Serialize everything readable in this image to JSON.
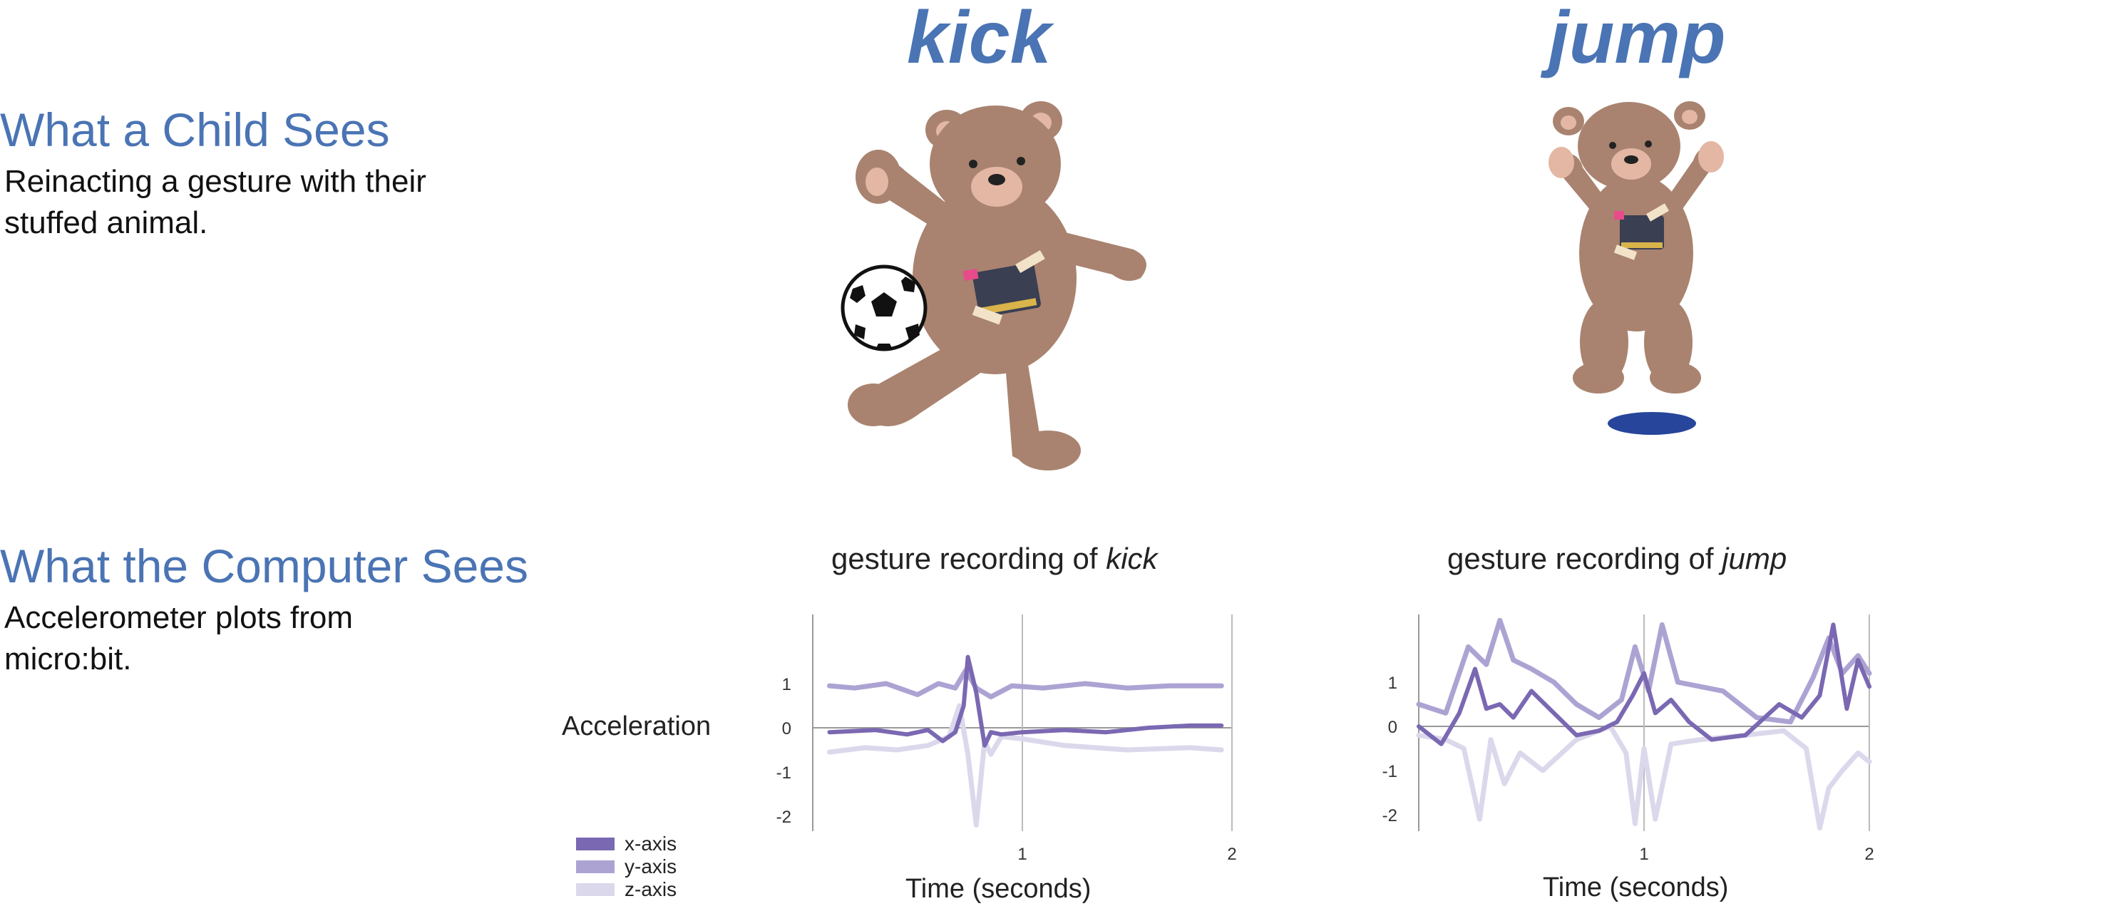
{
  "left": {
    "child": {
      "title": "What a Child Sees",
      "body": "Reinacting a gesture with their stuffed animal."
    },
    "computer": {
      "title": "What the Computer Sees",
      "body": "Accelerometer plots from micro:bit."
    }
  },
  "gestures": [
    {
      "word": "kick",
      "caption_prefix": "gesture recording of ",
      "caption_word": "kick"
    },
    {
      "word": "jump",
      "caption_prefix": "gesture recording of ",
      "caption_word": "jump"
    }
  ],
  "colors": {
    "heading": "#4a74b4",
    "bear": "#a98370",
    "bear_light": "#e3b7a3",
    "shadow": "#27459a",
    "x": "#7a68b2",
    "y": "#ada3d3",
    "z": "#dcd8ec"
  },
  "chart_data": [
    {
      "type": "line",
      "title": "gesture recording of kick",
      "ylabel": "Acceleration",
      "xlabel": "Time (seconds)",
      "yticks": [
        "1",
        "0",
        "-1",
        "-2"
      ],
      "xticks": [
        "1",
        "2"
      ],
      "xlim": [
        0,
        2
      ],
      "ylim": [
        -2.3,
        2.6
      ],
      "series": [
        {
          "name": "x-axis",
          "color": "#7a68b2",
          "x": [
            0.08,
            0.3,
            0.45,
            0.55,
            0.62,
            0.68,
            0.72,
            0.74,
            0.78,
            0.82,
            0.85,
            0.9,
            1.0,
            1.2,
            1.4,
            1.6,
            1.8,
            1.95
          ],
          "y": [
            -0.1,
            -0.05,
            -0.15,
            -0.05,
            -0.3,
            -0.1,
            0.5,
            1.6,
            0.8,
            -0.4,
            -0.1,
            -0.15,
            -0.1,
            -0.05,
            -0.1,
            0.0,
            0.05,
            0.05
          ]
        },
        {
          "name": "y-axis",
          "color": "#ada3d3",
          "x": [
            0.08,
            0.2,
            0.35,
            0.5,
            0.6,
            0.68,
            0.73,
            0.78,
            0.85,
            0.95,
            1.1,
            1.3,
            1.5,
            1.7,
            1.95
          ],
          "y": [
            0.95,
            0.9,
            1.0,
            0.75,
            1.0,
            0.9,
            1.3,
            0.9,
            0.7,
            0.95,
            0.9,
            1.0,
            0.9,
            0.95,
            0.95
          ]
        },
        {
          "name": "z-axis",
          "color": "#dcd8ec",
          "x": [
            0.08,
            0.25,
            0.4,
            0.55,
            0.65,
            0.7,
            0.74,
            0.78,
            0.82,
            0.85,
            0.9,
            1.0,
            1.2,
            1.5,
            1.8,
            1.95
          ],
          "y": [
            -0.55,
            -0.45,
            -0.5,
            -0.4,
            -0.2,
            0.5,
            -0.6,
            -2.2,
            -0.3,
            -0.6,
            -0.2,
            -0.25,
            -0.4,
            -0.5,
            -0.45,
            -0.5
          ]
        }
      ]
    },
    {
      "type": "line",
      "title": "gesture recording of jump",
      "xlabel": "Time (seconds)",
      "yticks": [
        "1",
        "0",
        "-1",
        "-2"
      ],
      "xticks": [
        "1",
        "2"
      ],
      "xlim": [
        0,
        2
      ],
      "ylim": [
        -2.3,
        2.6
      ],
      "series": [
        {
          "name": "x-axis",
          "color": "#7a68b2",
          "x": [
            0.0,
            0.1,
            0.18,
            0.25,
            0.3,
            0.36,
            0.42,
            0.5,
            0.6,
            0.7,
            0.8,
            0.88,
            0.95,
            1.0,
            1.05,
            1.12,
            1.2,
            1.3,
            1.45,
            1.6,
            1.7,
            1.78,
            1.84,
            1.9,
            1.95,
            2.0
          ],
          "y": [
            0.0,
            -0.4,
            0.3,
            1.3,
            0.4,
            0.5,
            0.2,
            0.8,
            0.3,
            -0.2,
            -0.1,
            0.1,
            0.7,
            1.2,
            0.3,
            0.6,
            0.1,
            -0.3,
            -0.2,
            0.5,
            0.2,
            0.7,
            2.3,
            0.4,
            1.5,
            0.9
          ]
        },
        {
          "name": "y-axis",
          "color": "#ada3d3",
          "x": [
            0.0,
            0.12,
            0.22,
            0.3,
            0.36,
            0.42,
            0.5,
            0.6,
            0.7,
            0.8,
            0.9,
            0.96,
            1.02,
            1.08,
            1.15,
            1.25,
            1.35,
            1.5,
            1.65,
            1.75,
            1.82,
            1.88,
            1.95,
            2.0
          ],
          "y": [
            0.5,
            0.3,
            1.8,
            1.4,
            2.4,
            1.5,
            1.3,
            1.0,
            0.5,
            0.2,
            0.6,
            1.8,
            0.8,
            2.3,
            1.0,
            0.9,
            0.8,
            0.2,
            0.1,
            1.1,
            2.0,
            1.2,
            1.6,
            1.2
          ]
        },
        {
          "name": "z-axis",
          "color": "#dcd8ec",
          "x": [
            0.0,
            0.12,
            0.2,
            0.27,
            0.32,
            0.38,
            0.45,
            0.55,
            0.7,
            0.85,
            0.92,
            0.96,
            1.0,
            1.05,
            1.12,
            1.25,
            1.45,
            1.62,
            1.72,
            1.78,
            1.82,
            1.88,
            1.95,
            2.0
          ],
          "y": [
            -0.2,
            -0.3,
            -0.5,
            -2.1,
            -0.3,
            -1.3,
            -0.6,
            -1.0,
            -0.3,
            0.0,
            -0.6,
            -2.2,
            -0.5,
            -2.1,
            -0.4,
            -0.3,
            -0.2,
            -0.1,
            -0.5,
            -2.3,
            -1.4,
            -1.0,
            -0.6,
            -0.8
          ]
        }
      ]
    }
  ]
}
